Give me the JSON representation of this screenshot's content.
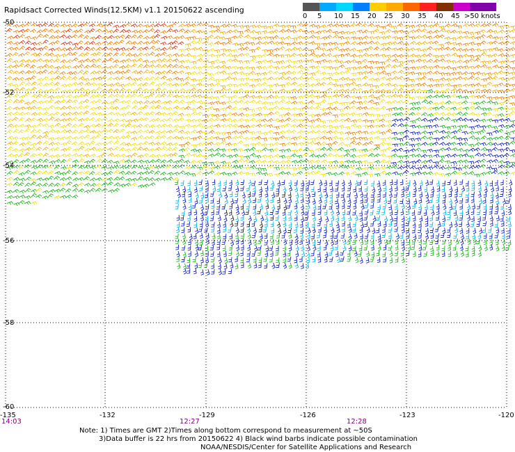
{
  "title": "Rapidsact Corrected Winds(12.5KM) v1.1 20150622 ascending",
  "legend": {
    "labels": [
      "0",
      "5",
      "10",
      "15",
      "20",
      "25",
      "30",
      "35",
      "40",
      "45",
      ">50 knots"
    ],
    "colors": [
      "#555555",
      "#00aaff",
      "#00d8ff",
      "#0080ff",
      "#ffcc00",
      "#ffaa00",
      "#ff6600",
      "#ff2020",
      "#803000",
      "#cc00cc",
      "#8000aa"
    ]
  },
  "axes": {
    "lat_labels": [
      "-50",
      "-52",
      "-54",
      "-56",
      "-58",
      "-60"
    ],
    "lon_labels": [
      "-135",
      "-132",
      "-129",
      "-126",
      "-123",
      "-120"
    ]
  },
  "time_labels": [
    "14:03",
    "12:27",
    "12:28"
  ],
  "notes": [
    "Note: 1) Times are GMT 2)Times along bottom correspond to measurement at ~50S",
    "3)Data buffer is 22 hrs from 20150622 4) Black wind barbs indicate possible contamination",
    "NOAA/NESDIS/Center for Satellite Applications and Research"
  ],
  "wind_colors": {
    "red": "#e03010",
    "orange": "#f08000",
    "amber": "#f0b000",
    "yellow": "#f0e000",
    "green": "#18b818",
    "blue": "#1020c8",
    "cyan": "#00b8e8",
    "black": "#202020"
  }
}
